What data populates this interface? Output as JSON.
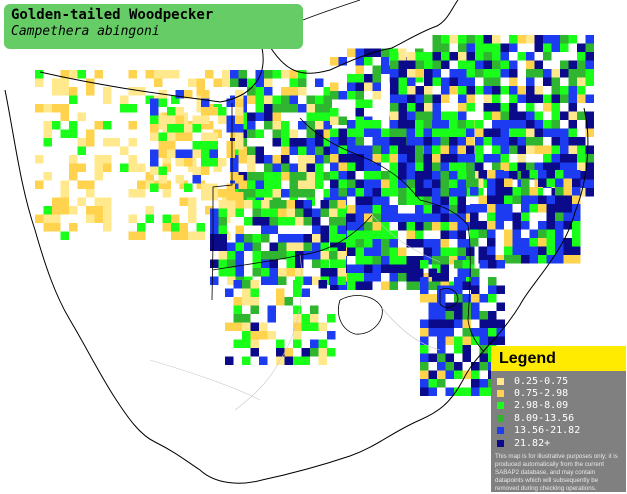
{
  "map": {
    "title": "Golden-tailed Woodpecker",
    "subtitle": "Campethera abingoni",
    "colors": {
      "land": "#ffffff",
      "border": "#000000",
      "provincial": "#c8c8c8"
    }
  },
  "legend": {
    "title": "Legend",
    "items": [
      {
        "label": "0.25-0.75",
        "color": "#ffe98c"
      },
      {
        "label": "0.75-2.98",
        "color": "#ffd34d"
      },
      {
        "label": "2.98-8.09",
        "color": "#19ff19"
      },
      {
        "label": "8.09-13.56",
        "color": "#2fb52f"
      },
      {
        "label": "13.56-21.82",
        "color": "#1d3bf0"
      },
      {
        "label": "21.82+",
        "color": "#0a0a8a"
      }
    ],
    "note": "This map is for illustrative purposes only; it is produced automatically from the current SABAP2 database, and may contain datapoints which will subsequently be removed during checking operations."
  }
}
